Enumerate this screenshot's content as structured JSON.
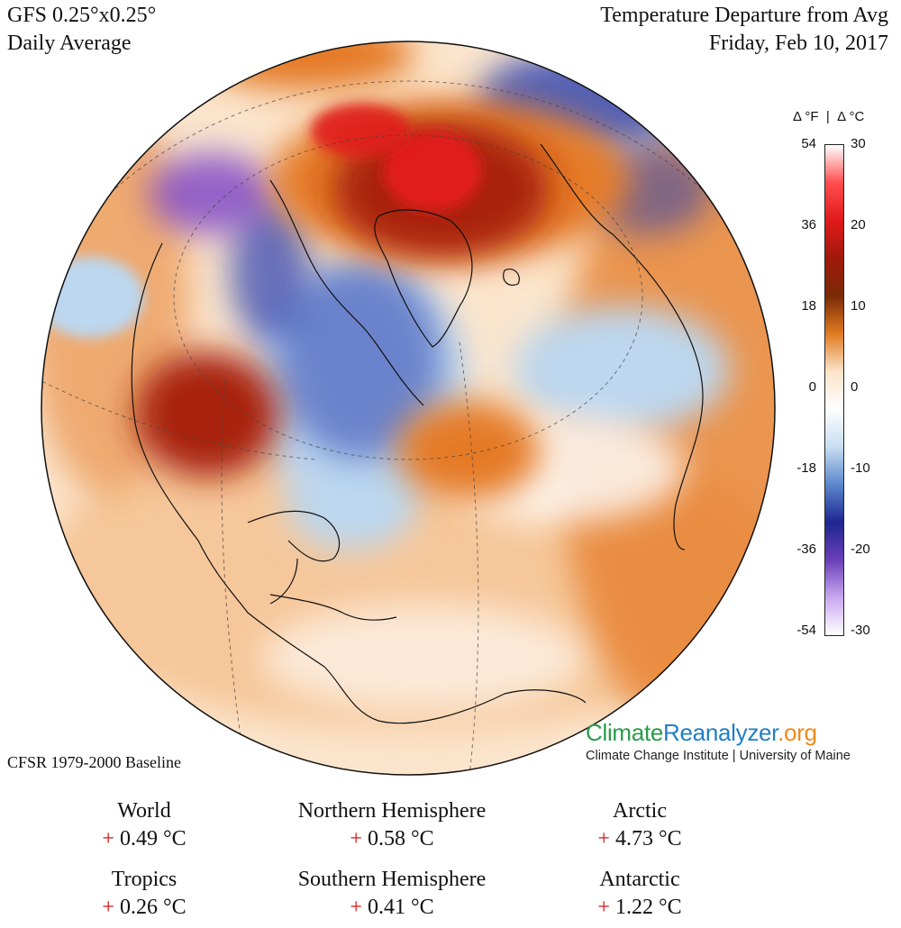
{
  "header": {
    "model": "GFS 0.25°x0.25°",
    "averaging": "Daily Average",
    "title": "Temperature Departure from Avg",
    "date": "Friday, Feb 10, 2017"
  },
  "map": {
    "projection": "orthographic",
    "center": "North Atlantic / North Pole",
    "colors": {
      "strong_warm": "#e01a1a",
      "warm": "#a82408",
      "mild_warm": "#e57a26",
      "light_warm": "#f6c79a",
      "neutral": "#ffffff",
      "light_cold": "#bcd7ef",
      "cold": "#2b3fb0",
      "very_cold": "#7a42c8"
    }
  },
  "colorbar": {
    "title": "Δ °F  |  Δ °C",
    "ticks_f": [
      "54",
      "36",
      "18",
      "0",
      "-18",
      "-36",
      "-54"
    ],
    "ticks_c": [
      "30",
      "20",
      "10",
      "0",
      "-10",
      "-20",
      "-30"
    ],
    "stops": [
      "#ffffff",
      "#ff4e4e",
      "#e01a1a",
      "#a01a0a",
      "#7a2a06",
      "#e07a20",
      "#fbe3c8",
      "#ffffff",
      "#c8def2",
      "#5c88cc",
      "#1d2690",
      "#6a3fb8",
      "#c9a7ee",
      "#ffffff"
    ]
  },
  "baseline": "CFSR 1979-2000 Baseline",
  "brand": {
    "part1": "Climate",
    "part2": "Reanalyzer",
    "part3": ".org",
    "sub": "Climate Change Institute | University of Maine"
  },
  "stats": [
    {
      "label": "World",
      "sign": "+",
      "value": "0.49 °C"
    },
    {
      "label": "Northern Hemisphere",
      "sign": "+",
      "value": "0.58 °C"
    },
    {
      "label": "Arctic",
      "sign": "+",
      "value": "4.73 °C"
    },
    {
      "label": "Tropics",
      "sign": "+",
      "value": "0.26 °C"
    },
    {
      "label": "Southern Hemisphere",
      "sign": "+",
      "value": "0.41 °C"
    },
    {
      "label": "Antarctic",
      "sign": "+",
      "value": "1.22 °C"
    }
  ]
}
